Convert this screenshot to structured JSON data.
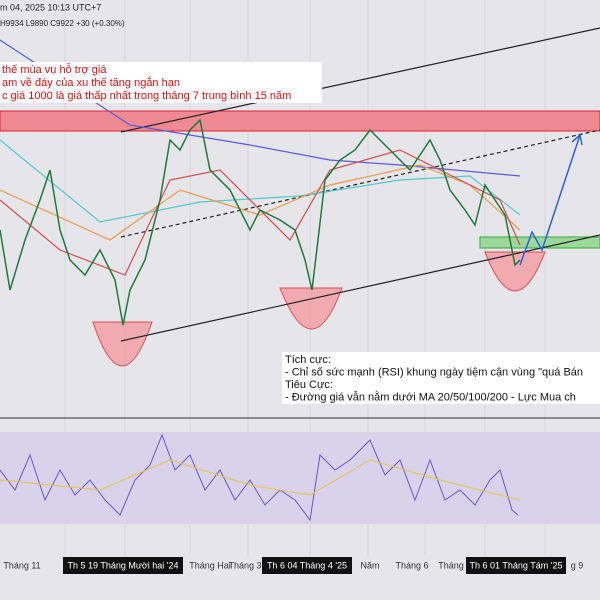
{
  "header": {
    "date": "m 04, 2025 10:13 UTC+7",
    "ohlc": "H9934 L9890 C9922 +30 (+0.30%)"
  },
  "annotations": {
    "top": [
      "thế mùa vụ hỗ trợ giá",
      "ạm về đáy của xu thế tăng ngắn hạn",
      "c giá 1000 là giá thấp nhất trong tháng 7 trung bình 15 năm"
    ],
    "bottom": [
      "Tích cực:",
      "- Chỉ số sức mạnh (RSI) khung ngày tiệm cận vùng \"quá Bán",
      "Tiêu Cực:",
      "- Đường giá vẫn nằm dưới MA 20/50/100/200 - Lực Mua ch"
    ]
  },
  "x_axis": {
    "labels": [
      "Tháng 11",
      "Tháng Hai",
      "Tháng 3",
      "Năm",
      "Tháng 6",
      "Tháng",
      "g 9"
    ],
    "highlights": [
      "Th 5 19 Tháng Mười hai '24",
      "Th 6 04 Tháng 4 '25",
      "Th 6 01 Tháng Tám '25"
    ]
  }
}
